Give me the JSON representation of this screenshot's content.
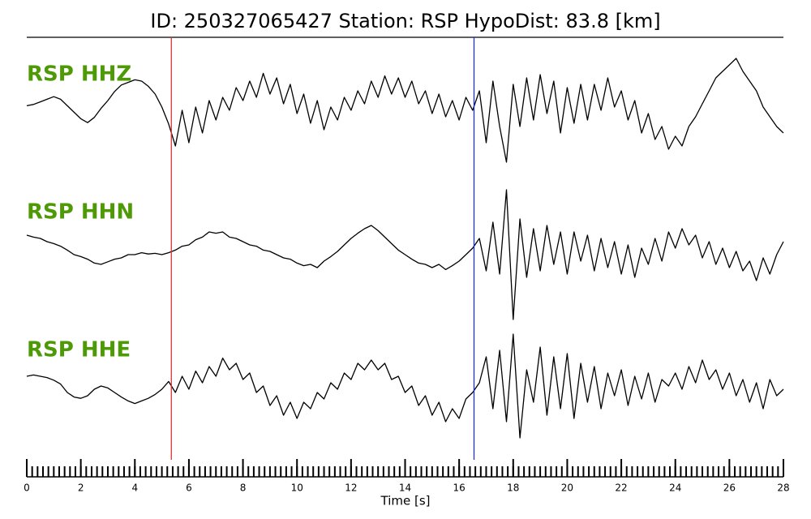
{
  "chart_data": {
    "type": "line",
    "title": "ID: 250327065427   Station: RSP   HypoDist:    83.8 [km]",
    "xlabel": "Time [s]",
    "xlim": [
      0,
      28
    ],
    "xticks": [
      0,
      2,
      4,
      6,
      8,
      10,
      12,
      14,
      16,
      18,
      20,
      22,
      24,
      26,
      28
    ],
    "x_minor_step": 0.2,
    "ylim": [
      -1,
      1
    ],
    "label_color": "#4e9a06",
    "picks": [
      {
        "x": 5.35,
        "color": "#e03030"
      },
      {
        "x": 16.55,
        "color": "#2030e0"
      }
    ],
    "x": [
      0,
      0.25,
      0.5,
      0.75,
      1,
      1.25,
      1.5,
      1.75,
      2,
      2.25,
      2.5,
      2.75,
      3,
      3.25,
      3.5,
      3.75,
      4,
      4.25,
      4.5,
      4.75,
      5,
      5.25,
      5.5,
      5.75,
      6,
      6.25,
      6.5,
      6.75,
      7,
      7.25,
      7.5,
      7.75,
      8,
      8.25,
      8.5,
      8.75,
      9,
      9.25,
      9.5,
      9.75,
      10,
      10.25,
      10.5,
      10.75,
      11,
      11.25,
      11.5,
      11.75,
      12,
      12.25,
      12.5,
      12.75,
      13,
      13.25,
      13.5,
      13.75,
      14,
      14.25,
      14.5,
      14.75,
      15,
      15.25,
      15.5,
      15.75,
      16,
      16.25,
      16.5,
      16.75,
      17,
      17.25,
      17.5,
      17.75,
      18,
      18.25,
      18.5,
      18.75,
      19,
      19.25,
      19.5,
      19.75,
      20,
      20.25,
      20.5,
      20.75,
      21,
      21.25,
      21.5,
      21.75,
      22,
      22.25,
      22.5,
      22.75,
      23,
      23.25,
      23.5,
      23.75,
      24,
      24.25,
      24.5,
      24.75,
      25,
      25.25,
      25.5,
      25.75,
      26,
      26.25,
      26.5,
      26.75,
      27,
      27.25,
      27.5,
      27.75,
      28
    ],
    "series": [
      {
        "name": "RSP HHZ",
        "color": "#000000",
        "values": [
          0.12,
          0.14,
          0.18,
          0.22,
          0.26,
          0.22,
          0.12,
          0.02,
          -0.08,
          -0.14,
          -0.06,
          0.08,
          0.2,
          0.34,
          0.44,
          0.48,
          0.52,
          0.5,
          0.42,
          0.3,
          0.1,
          -0.16,
          -0.5,
          0.05,
          -0.45,
          0.1,
          -0.3,
          0.2,
          -0.1,
          0.25,
          0.05,
          0.4,
          0.2,
          0.5,
          0.25,
          0.62,
          0.3,
          0.55,
          0.15,
          0.45,
          0.0,
          0.3,
          -0.15,
          0.2,
          -0.25,
          0.1,
          -0.1,
          0.25,
          0.05,
          0.35,
          0.15,
          0.5,
          0.25,
          0.58,
          0.3,
          0.55,
          0.25,
          0.5,
          0.15,
          0.35,
          0.0,
          0.3,
          -0.05,
          0.2,
          -0.1,
          0.25,
          0.05,
          0.35,
          -0.45,
          0.5,
          -0.2,
          -0.75,
          0.45,
          -0.2,
          0.55,
          -0.1,
          0.6,
          0.0,
          0.5,
          -0.3,
          0.4,
          -0.15,
          0.45,
          -0.1,
          0.45,
          0.05,
          0.55,
          0.1,
          0.35,
          -0.1,
          0.2,
          -0.3,
          0.0,
          -0.4,
          -0.2,
          -0.55,
          -0.35,
          -0.5,
          -0.2,
          -0.05,
          0.15,
          0.35,
          0.55,
          0.65,
          0.75,
          0.85,
          0.65,
          0.5,
          0.35,
          0.1,
          -0.05,
          -0.2,
          -0.3
        ]
      },
      {
        "name": "RSP HHN",
        "color": "#000000",
        "values": [
          0.25,
          0.22,
          0.2,
          0.15,
          0.12,
          0.08,
          0.02,
          -0.05,
          -0.08,
          -0.12,
          -0.18,
          -0.2,
          -0.16,
          -0.12,
          -0.1,
          -0.05,
          -0.05,
          -0.02,
          -0.04,
          -0.03,
          -0.05,
          -0.02,
          0.02,
          0.08,
          0.1,
          0.18,
          0.22,
          0.3,
          0.28,
          0.3,
          0.22,
          0.2,
          0.15,
          0.1,
          0.08,
          0.02,
          0.0,
          -0.05,
          -0.1,
          -0.12,
          -0.18,
          -0.22,
          -0.2,
          -0.25,
          -0.15,
          -0.08,
          0.0,
          0.1,
          0.2,
          0.28,
          0.35,
          0.4,
          0.32,
          0.22,
          0.12,
          0.02,
          -0.05,
          -0.12,
          -0.18,
          -0.2,
          -0.25,
          -0.2,
          -0.28,
          -0.22,
          -0.15,
          -0.05,
          0.05,
          0.2,
          -0.3,
          0.45,
          -0.35,
          0.95,
          -1.05,
          0.5,
          -0.4,
          0.35,
          -0.3,
          0.4,
          -0.2,
          0.3,
          -0.35,
          0.3,
          -0.15,
          0.25,
          -0.3,
          0.2,
          -0.25,
          0.15,
          -0.35,
          0.1,
          -0.4,
          0.05,
          -0.2,
          0.2,
          -0.15,
          0.3,
          0.05,
          0.35,
          0.1,
          0.25,
          -0.1,
          0.15,
          -0.2,
          0.05,
          -0.25,
          0.0,
          -0.3,
          -0.15,
          -0.45,
          -0.1,
          -0.35,
          -0.05,
          0.15
        ]
      },
      {
        "name": "RSP HHE",
        "color": "#000000",
        "values": [
          0.2,
          0.22,
          0.2,
          0.18,
          0.14,
          0.08,
          -0.05,
          -0.12,
          -0.14,
          -0.1,
          0.0,
          0.05,
          0.02,
          -0.05,
          -0.12,
          -0.18,
          -0.22,
          -0.18,
          -0.14,
          -0.08,
          0.0,
          0.12,
          -0.05,
          0.2,
          0.0,
          0.28,
          0.1,
          0.35,
          0.2,
          0.48,
          0.3,
          0.4,
          0.15,
          0.25,
          -0.05,
          0.05,
          -0.25,
          -0.1,
          -0.4,
          -0.2,
          -0.45,
          -0.2,
          -0.3,
          -0.05,
          -0.15,
          0.1,
          0.0,
          0.25,
          0.15,
          0.4,
          0.3,
          0.45,
          0.3,
          0.4,
          0.15,
          0.2,
          -0.05,
          0.05,
          -0.25,
          -0.1,
          -0.4,
          -0.2,
          -0.5,
          -0.3,
          -0.45,
          -0.15,
          -0.05,
          0.1,
          0.5,
          -0.3,
          0.6,
          -0.5,
          0.85,
          -0.75,
          0.3,
          -0.2,
          0.65,
          -0.4,
          0.5,
          -0.3,
          0.55,
          -0.45,
          0.4,
          -0.2,
          0.35,
          -0.3,
          0.25,
          -0.1,
          0.3,
          -0.25,
          0.2,
          -0.15,
          0.25,
          -0.2,
          0.15,
          0.05,
          0.25,
          0.0,
          0.35,
          0.1,
          0.45,
          0.15,
          0.3,
          0.0,
          0.25,
          -0.1,
          0.15,
          -0.2,
          0.1,
          -0.3,
          0.15,
          -0.1,
          0.0
        ]
      }
    ]
  }
}
